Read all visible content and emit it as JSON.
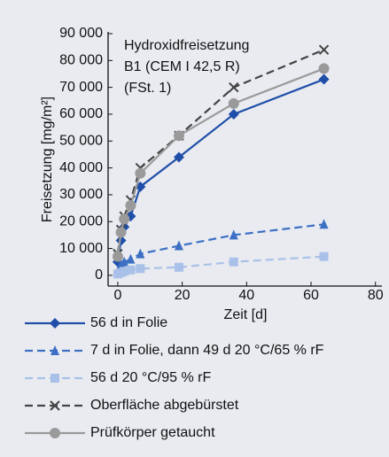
{
  "chart_data": {
    "type": "line",
    "annotation": [
      "Hydroxidfreisetzung",
      "B1 (CEM I 42,5 R)",
      "(FSt. 1)"
    ],
    "xlabel": "Zeit [d]",
    "ylabel": "Freisetzung [mg/m²]",
    "x": [
      0,
      1,
      2,
      4,
      7,
      19,
      36,
      64
    ],
    "series": [
      {
        "name": "56 d in Folie",
        "color": "#1f4fa8",
        "marker": "diamond",
        "dashed": false,
        "values": [
          5000,
          13000,
          18000,
          22000,
          33000,
          44000,
          60000,
          73000
        ]
      },
      {
        "name": "7 d in Folie, dann 49 d 20 °C/65 % rF",
        "color": "#3d6fc4",
        "marker": "triangle",
        "dashed": true,
        "values": [
          1500,
          4000,
          5000,
          6000,
          8000,
          11000,
          15000,
          19000
        ]
      },
      {
        "name": "56 d 20 °C/95 % rF",
        "color": "#a9c1e8",
        "marker": "square",
        "dashed": true,
        "values": [
          500,
          1000,
          1500,
          2000,
          2500,
          3000,
          5000,
          7000
        ]
      },
      {
        "name": "Oberfläche abgebürstet",
        "color": "#444444",
        "marker": "x",
        "dashed": true,
        "values": [
          8000,
          17000,
          22000,
          28000,
          40000,
          52000,
          70000,
          84000
        ]
      },
      {
        "name": "Prüfkörper getaucht",
        "color": "#9a9a9a",
        "marker": "circle",
        "dashed": false,
        "values": [
          7000,
          16000,
          21000,
          26000,
          38000,
          52000,
          64000,
          77000
        ]
      }
    ],
    "xlim": [
      -3,
      82
    ],
    "xticks": [
      0,
      20,
      40,
      60,
      80
    ],
    "ylim": [
      -4000,
      90000
    ],
    "yticks": [
      0,
      {
        "value": 10000,
        "label": "10 000"
      },
      {
        "value": 20000,
        "label": "20 000"
      },
      {
        "value": 30000,
        "label": "30 000"
      },
      {
        "value": 40000,
        "label": "40 000"
      },
      {
        "value": 50000,
        "label": "50 000"
      },
      {
        "value": 60000,
        "label": "60 000"
      },
      {
        "value": 70000,
        "label": "70 000"
      },
      {
        "value": 80000,
        "label": "80 000"
      },
      {
        "value": 90000,
        "label": "90 000"
      }
    ],
    "grid": false
  }
}
